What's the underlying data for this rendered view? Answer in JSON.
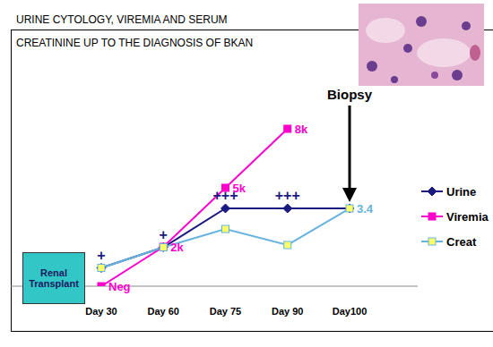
{
  "chart_data": {
    "type": "line",
    "title": "URINE CYTOLOGY, VIREMIA AND SERUM CREATININE UP TO THE DIAGNOSIS OF BKAN",
    "categories": [
      "Day 30",
      "Day 60",
      "Day 75",
      "Day 90",
      "Day100"
    ],
    "series": [
      {
        "name": "Urine",
        "color": "#1a1a80",
        "marker": "diamond",
        "values": [
          0.8,
          1.7,
          3.4,
          3.4,
          3.4
        ],
        "value_labels": [
          "+",
          "+",
          "+++",
          "+++",
          null
        ]
      },
      {
        "name": "Viremia",
        "color": "#ff00cc",
        "marker": "square",
        "axis": "y2",
        "values": [
          0,
          2000,
          5000,
          8000,
          null
        ],
        "value_labels": [
          "Neg",
          "2k",
          "5k",
          "8k",
          null
        ]
      },
      {
        "name": "Creat",
        "color": "#66b2e0",
        "marker": "square",
        "values": [
          0.8,
          1.7,
          2.5,
          1.8,
          3.4
        ],
        "value_labels": [
          null,
          null,
          null,
          null,
          "3.4"
        ]
      }
    ],
    "ylim": [
      0,
      8.6
    ],
    "y2lim": [
      0,
      10000
    ],
    "tick_labels": "x",
    "grid": false,
    "legend": "right",
    "annotations": [
      "Renal Transplant",
      "Biopsy"
    ]
  }
}
